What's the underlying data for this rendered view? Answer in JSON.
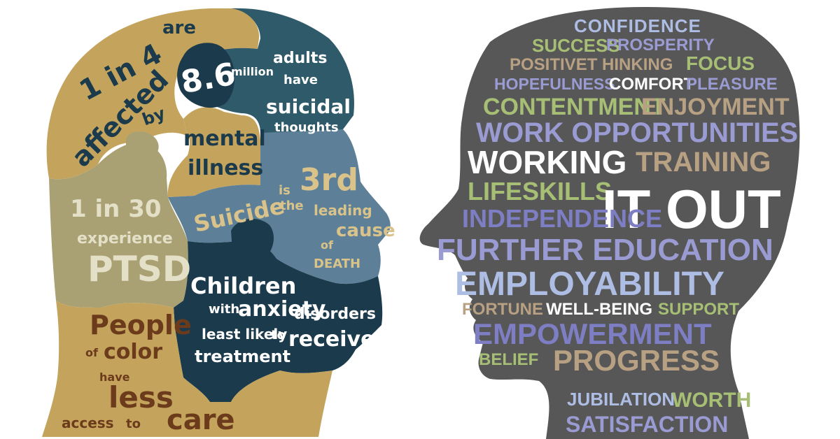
{
  "colors": {
    "tan": "#c4a45c",
    "teal_dark": "#204a5a",
    "teal_mid": "#3a6a7e",
    "slate": "#5d8098",
    "khaki": "#a9a173",
    "navy": "#1b3a4c",
    "gray_head": "#575757",
    "word_green": "#a7bf74",
    "word_lav": "#9a9bd2",
    "word_tan": "#b8a083",
    "word_lightblue": "#aebde4",
    "word_white": "#ffffff"
  },
  "left_head": {
    "p1": {
      "a": "1 in 4",
      "b": "are",
      "c": "affected",
      "d": "by"
    },
    "p2": {
      "num": "8.6",
      "million": "million",
      "adults": "adults",
      "have": "have",
      "suicidal": "suicidal",
      "thoughts": "thoughts"
    },
    "mental": "mental",
    "illness": "illness",
    "ptsd": {
      "a": "1 in 30",
      "b": "experience",
      "c": "PTSD"
    },
    "suicide": {
      "a": "Suicide",
      "is": "is",
      "the": "the",
      "third": "3rd",
      "leading": "leading",
      "cause": "cause",
      "of": "of",
      "death": "DEATH"
    },
    "children": {
      "a": "Children",
      "with": "with",
      "anxiety": "anxiety",
      "disorders": "disorders",
      "least": "least likely",
      "to": "to",
      "receive": "receive",
      "treatment": "treatment"
    },
    "people": {
      "a": "People",
      "of": "of",
      "color": "color",
      "have": "have",
      "less": "less",
      "access": "access",
      "to": "to",
      "care": "care"
    }
  },
  "right_head": {
    "words": {
      "confidence": "CONFIDENCE",
      "success": "SUCCESS",
      "prosperity": "PROSPERITY",
      "positive": "POSITIVET HINKING",
      "focus": "FOCUS",
      "hopefulness": "HOPEFULNESS",
      "comfort": "COMFORT",
      "pleasure": "PLEASURE",
      "contentment": "CONTENTMENT",
      "enjoyment": "ENJOYMENT",
      "work": "WORK OPPORTUNITIES",
      "working": "WORKING",
      "training": "TRAINING",
      "lifeskills": "LIFESKILLS",
      "itout": "IT OUT",
      "independence": "INDEPENDENCE",
      "further": "FURTHER EDUCATION",
      "employability": "EMPLOYABILITY",
      "fortune": "FORTUNE",
      "wellbeing": "WELL-BEING",
      "support": "SUPPORT",
      "empowerment": "EMPOWERMENT",
      "belief": "BELIEF",
      "progress": "PROGRESS",
      "jubilation": "JUBILATION",
      "worth": "WORTH",
      "satisfaction": "SATISFACTION"
    }
  }
}
